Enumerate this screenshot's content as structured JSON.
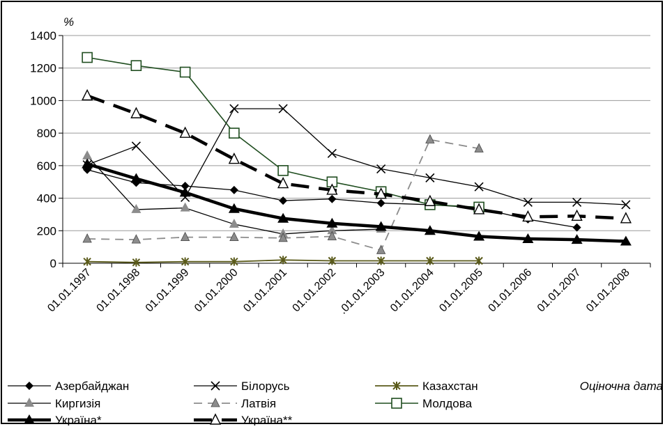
{
  "chart_data": {
    "type": "line",
    "ylabel": "%",
    "xlabel": "Оціночна дата",
    "ylim": [
      0,
      1400
    ],
    "y_ticks": [
      "0",
      "200",
      "400",
      "600",
      "800",
      "1000",
      "1200",
      "1400"
    ],
    "categories": [
      "01.01.1997",
      "01.01.1998",
      "01.01.1999",
      "01.01.2000",
      "01.01.2001",
      "01.01.2002",
      ".01.01.2003",
      "01.01.2004",
      "01.01.2005",
      "01.01.2006",
      "01.01.2007",
      "01.01.2008"
    ],
    "grid": "horizontal",
    "legend_position": "bottom",
    "series": [
      {
        "name": "Азербайджан",
        "color": "#000000",
        "width": 1.3,
        "dash": "",
        "marker": "diamond",
        "values": [
          575,
          495,
          475,
          450,
          385,
          395,
          370,
          360,
          340,
          270,
          220,
          null
        ]
      },
      {
        "name": "Білорусь",
        "color": "#000000",
        "width": 1.3,
        "dash": "",
        "marker": "x",
        "values": [
          605,
          720,
          405,
          950,
          950,
          675,
          580,
          525,
          470,
          375,
          375,
          360
        ]
      },
      {
        "name": "Казахстан",
        "color": "#5a5a1a",
        "width": 1.8,
        "dash": "",
        "marker": "star",
        "values": [
          10,
          5,
          10,
          10,
          20,
          15,
          15,
          15,
          15,
          null,
          null,
          null
        ]
      },
      {
        "name": "Киргизія",
        "color": "#000000",
        "width": 1.3,
        "dash": "",
        "marker": "triangle-gray",
        "values": [
          660,
          330,
          340,
          240,
          180,
          200,
          210,
          null,
          null,
          null,
          null,
          null
        ]
      },
      {
        "name": "Латвія",
        "color": "#8c8c8c",
        "width": 1.8,
        "dash": "12,8",
        "marker": "triangle-small",
        "values": [
          150,
          145,
          160,
          160,
          155,
          165,
          80,
          760,
          705,
          null,
          null,
          null
        ]
      },
      {
        "name": "Молдова",
        "color": "#1f4d1f",
        "width": 1.6,
        "dash": "",
        "marker": "square-open",
        "values": [
          1265,
          1215,
          1175,
          800,
          570,
          500,
          440,
          360,
          345,
          null,
          null,
          null
        ]
      },
      {
        "name": "Україна*",
        "color": "#000000",
        "width": 4.5,
        "dash": "",
        "marker": "triangle-filled",
        "values": [
          610,
          520,
          435,
          335,
          275,
          245,
          225,
          200,
          165,
          150,
          145,
          135
        ]
      },
      {
        "name": "Україна**",
        "color": "#000000",
        "width": 4.5,
        "dash": "26,14",
        "marker": "triangle-open",
        "values": [
          1030,
          920,
          800,
          640,
          490,
          450,
          425,
          380,
          330,
          285,
          290,
          275
        ]
      }
    ]
  }
}
